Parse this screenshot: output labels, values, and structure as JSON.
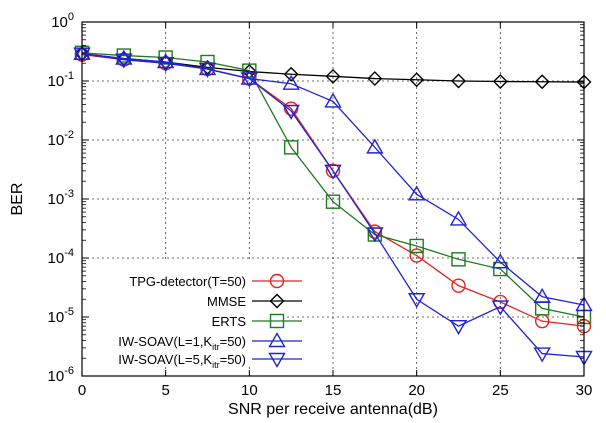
{
  "chart_data": {
    "type": "line",
    "title": "",
    "xlabel": "SNR per receive antenna(dB)",
    "ylabel": "BER",
    "xlim": [
      0,
      30
    ],
    "ylim": [
      1e-06,
      1
    ],
    "yscale": "log",
    "grid": true,
    "legend_position": "bottom-left",
    "x_ticks": [
      0,
      5,
      10,
      15,
      20,
      25,
      30
    ],
    "y_ticks": [
      {
        "value": 1e-06,
        "base": "10",
        "exp": "-6"
      },
      {
        "value": 1e-05,
        "base": "10",
        "exp": "-5"
      },
      {
        "value": 0.0001,
        "base": "10",
        "exp": "-4"
      },
      {
        "value": 0.001,
        "base": "10",
        "exp": "-3"
      },
      {
        "value": 0.01,
        "base": "10",
        "exp": "-2"
      },
      {
        "value": 0.1,
        "base": "10",
        "exp": "-1"
      },
      {
        "value": 1,
        "base": "10",
        "exp": "0"
      }
    ],
    "x": [
      0,
      2.5,
      5,
      7.5,
      10,
      12.5,
      15,
      17.5,
      20,
      22.5,
      25,
      27.5,
      30
    ],
    "series": [
      {
        "name": "TPG-detector(T=50)",
        "legend": {
          "main": "TPG-detector(T=50)",
          "sub": "",
          "tail": ""
        },
        "color": "#e8211c",
        "marker": "circle",
        "values": [
          0.28,
          0.23,
          0.2,
          0.16,
          0.11,
          0.034,
          0.003,
          0.00028,
          0.00011,
          3.4e-05,
          1.8e-05,
          8.5e-06,
          7e-06
        ]
      },
      {
        "name": "MMSE",
        "legend": {
          "main": "MMSE",
          "sub": "",
          "tail": ""
        },
        "color": "#000000",
        "marker": "diamond",
        "values": [
          0.29,
          0.24,
          0.21,
          0.17,
          0.145,
          0.13,
          0.12,
          0.11,
          0.105,
          0.1,
          0.098,
          0.097,
          0.096
        ]
      },
      {
        "name": "ERTS",
        "legend": {
          "main": "ERTS",
          "sub": "",
          "tail": ""
        },
        "color": "#1e7a1e",
        "marker": "square",
        "values": [
          0.3,
          0.27,
          0.25,
          0.21,
          0.15,
          0.0075,
          0.0009,
          0.00025,
          0.00016,
          9.5e-05,
          6.5e-05,
          1.4e-05,
          1e-05
        ]
      },
      {
        "name": "IW-SOAV(L=1,Kitr=50)",
        "legend": {
          "main": "IW-SOAV(L=1,K",
          "sub": "itr",
          "tail": "=50)"
        },
        "color": "#1f23d6",
        "marker": "triangle-up",
        "values": [
          0.29,
          0.24,
          0.21,
          0.16,
          0.11,
          0.09,
          0.045,
          0.0075,
          0.0012,
          0.00045,
          8.5e-05,
          2.2e-05,
          1.6e-05
        ]
      },
      {
        "name": "IW-SOAV(L=5,Kitr=50)",
        "legend": {
          "main": "IW-SOAV(L=5,K",
          "sub": "itr",
          "tail": "=50)"
        },
        "color": "#1f23d6",
        "marker": "triangle-down",
        "values": [
          0.29,
          0.23,
          0.2,
          0.16,
          0.11,
          0.031,
          0.003,
          0.00026,
          2e-05,
          7e-06,
          1.5e-05,
          2.4e-06,
          2.1e-06
        ]
      }
    ]
  }
}
